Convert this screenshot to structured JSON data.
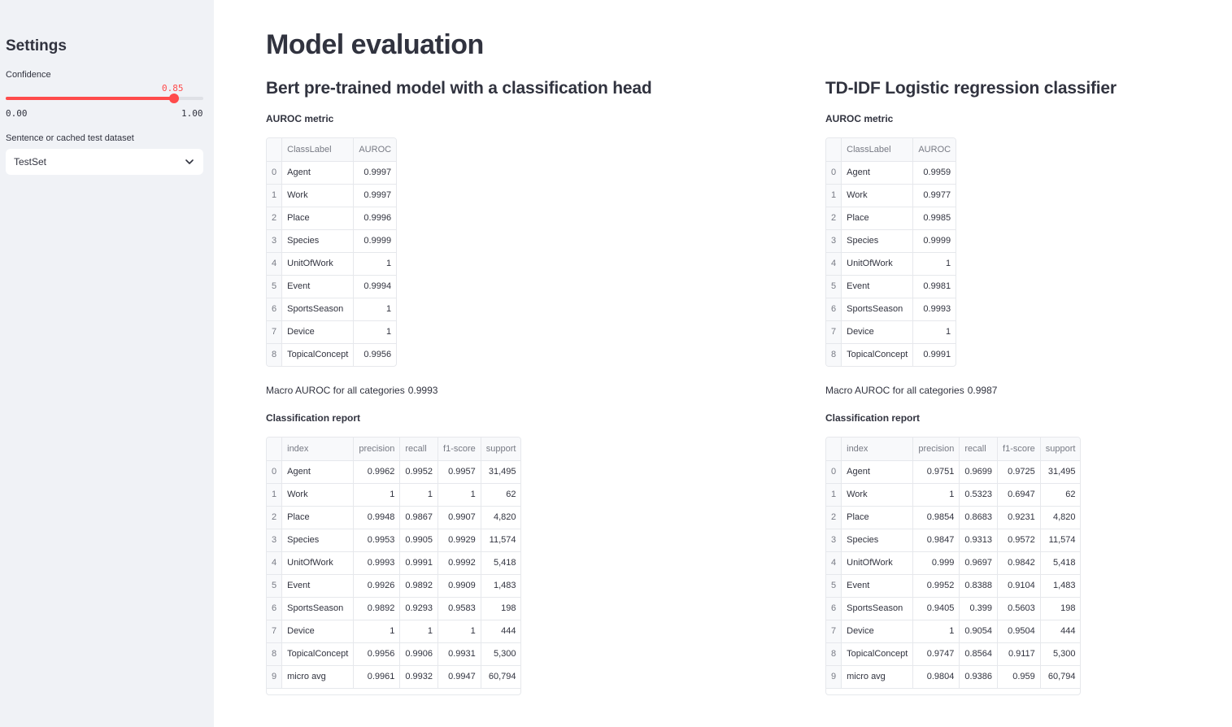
{
  "sidebar": {
    "title": "Settings",
    "confidence_label": "Confidence",
    "slider": {
      "value": "0.85",
      "min": "0.00",
      "max": "1.00",
      "fraction": 0.85
    },
    "dataset_label": "Sentence or cached test dataset",
    "dataset_selected": "TestSet",
    "accent_color": "#ff4b4b"
  },
  "main": {
    "title": "Model evaluation",
    "columns": [
      {
        "title": "Bert pre-trained model with a classification head",
        "auroc_heading": "AUROC metric",
        "auroc_headers": [
          "",
          "ClassLabel",
          "AUROC"
        ],
        "auroc_rows": [
          [
            "0",
            "Agent",
            "0.9997"
          ],
          [
            "1",
            "Work",
            "0.9997"
          ],
          [
            "2",
            "Place",
            "0.9996"
          ],
          [
            "3",
            "Species",
            "0.9999"
          ],
          [
            "4",
            "UnitOfWork",
            "1"
          ],
          [
            "5",
            "Event",
            "0.9994"
          ],
          [
            "6",
            "SportsSeason",
            "1"
          ],
          [
            "7",
            "Device",
            "1"
          ],
          [
            "8",
            "TopicalConcept",
            "0.9956"
          ]
        ],
        "macro_text": "Macro AUROC for all categories",
        "macro_value": "0.9993",
        "report_heading": "Classification report",
        "report_headers": [
          "",
          "index",
          "precision",
          "recall",
          "f1-score",
          "support"
        ],
        "report_rows": [
          [
            "0",
            "Agent",
            "0.9962",
            "0.9952",
            "0.9957",
            "31,495"
          ],
          [
            "1",
            "Work",
            "1",
            "1",
            "1",
            "62"
          ],
          [
            "2",
            "Place",
            "0.9948",
            "0.9867",
            "0.9907",
            "4,820"
          ],
          [
            "3",
            "Species",
            "0.9953",
            "0.9905",
            "0.9929",
            "11,574"
          ],
          [
            "4",
            "UnitOfWork",
            "0.9993",
            "0.9991",
            "0.9992",
            "5,418"
          ],
          [
            "5",
            "Event",
            "0.9926",
            "0.9892",
            "0.9909",
            "1,483"
          ],
          [
            "6",
            "SportsSeason",
            "0.9892",
            "0.9293",
            "0.9583",
            "198"
          ],
          [
            "7",
            "Device",
            "1",
            "1",
            "1",
            "444"
          ],
          [
            "8",
            "TopicalConcept",
            "0.9956",
            "0.9906",
            "0.9931",
            "5,300"
          ],
          [
            "9",
            "micro avg",
            "0.9961",
            "0.9932",
            "0.9947",
            "60,794"
          ]
        ]
      },
      {
        "title": "TD-IDF Logistic regression classifier",
        "auroc_heading": "AUROC metric",
        "auroc_headers": [
          "",
          "ClassLabel",
          "AUROC"
        ],
        "auroc_rows": [
          [
            "0",
            "Agent",
            "0.9959"
          ],
          [
            "1",
            "Work",
            "0.9977"
          ],
          [
            "2",
            "Place",
            "0.9985"
          ],
          [
            "3",
            "Species",
            "0.9999"
          ],
          [
            "4",
            "UnitOfWork",
            "1"
          ],
          [
            "5",
            "Event",
            "0.9981"
          ],
          [
            "6",
            "SportsSeason",
            "0.9993"
          ],
          [
            "7",
            "Device",
            "1"
          ],
          [
            "8",
            "TopicalConcept",
            "0.9991"
          ]
        ],
        "macro_text": "Macro AUROC for all categories",
        "macro_value": "0.9987",
        "report_heading": "Classification report",
        "report_headers": [
          "",
          "index",
          "precision",
          "recall",
          "f1-score",
          "support"
        ],
        "report_rows": [
          [
            "0",
            "Agent",
            "0.9751",
            "0.9699",
            "0.9725",
            "31,495"
          ],
          [
            "1",
            "Work",
            "1",
            "0.5323",
            "0.6947",
            "62"
          ],
          [
            "2",
            "Place",
            "0.9854",
            "0.8683",
            "0.9231",
            "4,820"
          ],
          [
            "3",
            "Species",
            "0.9847",
            "0.9313",
            "0.9572",
            "11,574"
          ],
          [
            "4",
            "UnitOfWork",
            "0.999",
            "0.9697",
            "0.9842",
            "5,418"
          ],
          [
            "5",
            "Event",
            "0.9952",
            "0.8388",
            "0.9104",
            "1,483"
          ],
          [
            "6",
            "SportsSeason",
            "0.9405",
            "0.399",
            "0.5603",
            "198"
          ],
          [
            "7",
            "Device",
            "1",
            "0.9054",
            "0.9504",
            "444"
          ],
          [
            "8",
            "TopicalConcept",
            "0.9747",
            "0.8564",
            "0.9117",
            "5,300"
          ],
          [
            "9",
            "micro avg",
            "0.9804",
            "0.9386",
            "0.959",
            "60,794"
          ]
        ]
      }
    ]
  }
}
